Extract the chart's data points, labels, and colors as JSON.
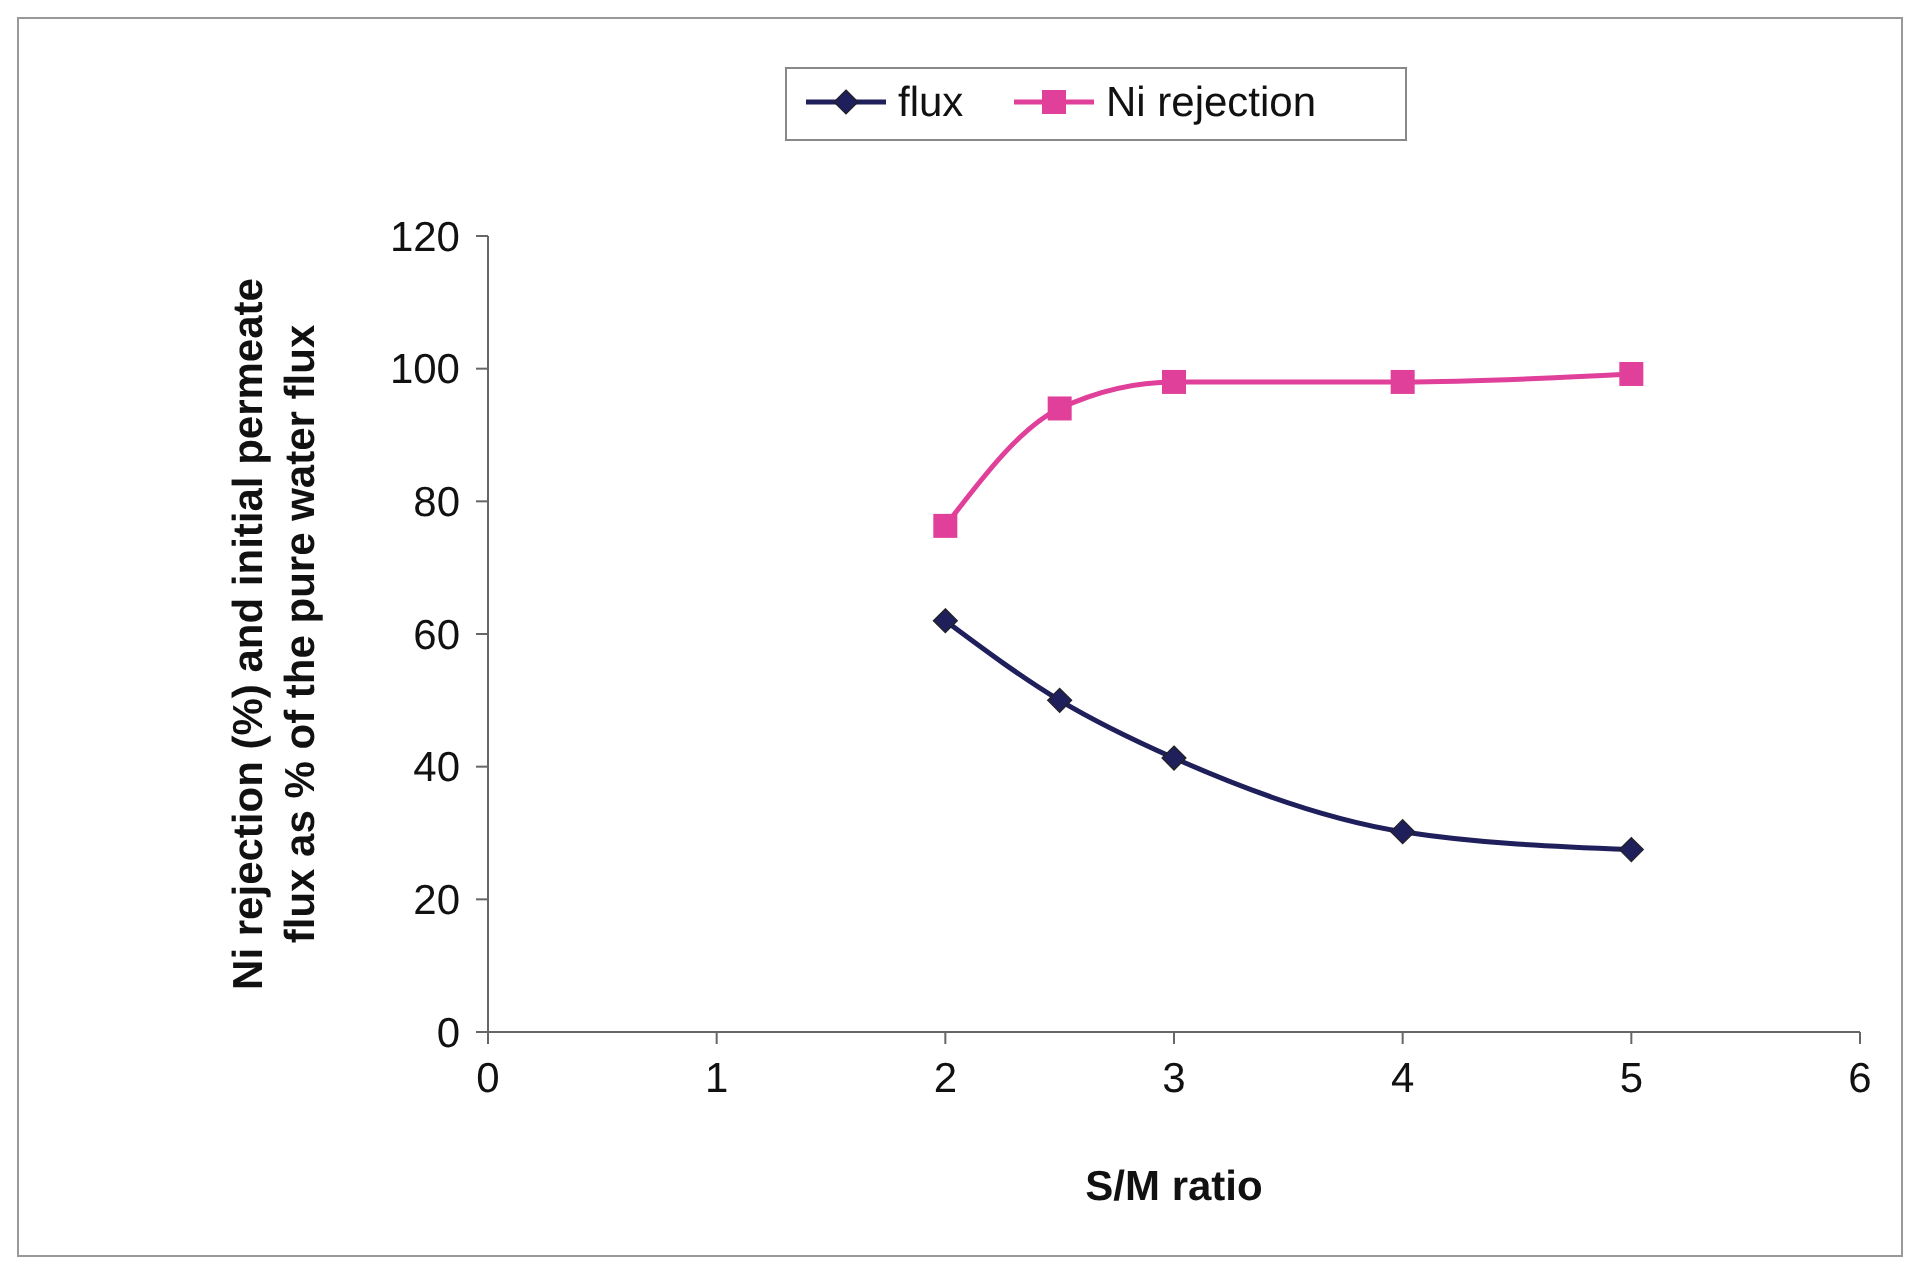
{
  "chart_data": {
    "type": "line",
    "xlabel": "S/M ratio",
    "ylabel": "Ni rejection (%) and initial permeate flux as % of the pure water flux",
    "x": [
      2,
      2.5,
      3,
      4,
      5
    ],
    "series": [
      {
        "name": "flux",
        "color": "#1f1f5c",
        "marker": "diamond",
        "values": [
          62,
          50,
          41.3,
          30.2,
          27.5
        ]
      },
      {
        "name": "Ni rejection",
        "color": "#e0409a",
        "marker": "square",
        "values": [
          76.3,
          94,
          98,
          98,
          99.2
        ]
      }
    ],
    "xlim": [
      0,
      6
    ],
    "xticks": [
      0,
      1,
      2,
      3,
      4,
      5,
      6
    ],
    "ylim": [
      0,
      120
    ],
    "yticks": [
      0,
      20,
      40,
      60,
      80,
      100,
      120
    ],
    "grid": false,
    "legend": "top",
    "line_style": "solid"
  }
}
